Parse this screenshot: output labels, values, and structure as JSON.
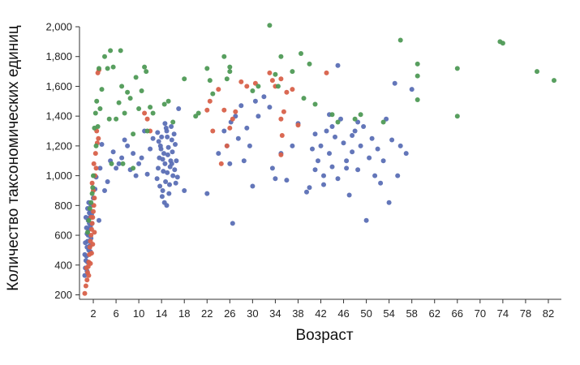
{
  "chart_data": {
    "type": "scatter",
    "xlabel": "Возраст",
    "ylabel": "Количество таксономических единиц",
    "xlim": [
      0,
      84
    ],
    "ylim": [
      170,
      2000
    ],
    "x_ticks": [
      2,
      6,
      10,
      14,
      18,
      22,
      26,
      30,
      34,
      38,
      42,
      46,
      50,
      54,
      58,
      62,
      66,
      70,
      74,
      78,
      82
    ],
    "x_tick_labels": [
      "2",
      "6",
      "10",
      "14",
      "18",
      "22",
      "26",
      "30",
      "34",
      "38",
      "42",
      "46",
      "50",
      "54",
      "58",
      "62",
      "66",
      "70",
      "74",
      "78",
      "82"
    ],
    "y_ticks": [
      200,
      400,
      600,
      800,
      1000,
      1200,
      1400,
      1600,
      1800,
      2000
    ],
    "y_tick_labels": [
      "200",
      "400",
      "600",
      "800",
      "1,000",
      "1,200",
      "1,400",
      "1,600",
      "1,800",
      "2,000"
    ],
    "grid": false,
    "colors": {
      "blue": "#5b6fb5",
      "red": "#d8614a",
      "green": "#4f9a56",
      "axis": "#333333"
    },
    "series": [
      {
        "color": "blue",
        "points": [
          [
            0.5,
            330
          ],
          [
            0.6,
            380
          ],
          [
            0.8,
            460
          ],
          [
            0.9,
            520
          ],
          [
            1.0,
            560
          ],
          [
            1.1,
            600
          ],
          [
            1.2,
            640
          ],
          [
            1.3,
            680
          ],
          [
            1.4,
            720
          ],
          [
            1.5,
            760
          ],
          [
            1.6,
            800
          ],
          [
            0.7,
            430
          ],
          [
            0.9,
            610
          ],
          [
            1.1,
            700
          ],
          [
            1.3,
            750
          ],
          [
            1.5,
            490
          ],
          [
            0.6,
            550
          ],
          [
            0.8,
            650
          ],
          [
            1.0,
            780
          ],
          [
            1.2,
            820
          ],
          [
            1.4,
            530
          ],
          [
            1.6,
            580
          ],
          [
            1.8,
            680
          ],
          [
            0.5,
            470
          ],
          [
            0.7,
            720
          ],
          [
            1.0,
            420
          ],
          [
            1.2,
            500
          ],
          [
            1.5,
            660
          ],
          [
            1.7,
            740
          ],
          [
            0.9,
            360
          ],
          [
            2.0,
            850
          ],
          [
            2.3,
            910
          ],
          [
            2.5,
            990
          ],
          [
            3.0,
            700
          ],
          [
            3.2,
            1050
          ],
          [
            3.5,
            1210
          ],
          [
            4.0,
            900
          ],
          [
            4.5,
            960
          ],
          [
            5.0,
            1100
          ],
          [
            5.5,
            1160
          ],
          [
            6.0,
            1050
          ],
          [
            6.5,
            1080
          ],
          [
            7.0,
            1120
          ],
          [
            7.5,
            1240
          ],
          [
            8.0,
            1200
          ],
          [
            8.5,
            1040
          ],
          [
            9.0,
            1150
          ],
          [
            9.5,
            1000
          ],
          [
            10.0,
            1080
          ],
          [
            10.5,
            1120
          ],
          [
            11.0,
            1300
          ],
          [
            11.5,
            1010
          ],
          [
            12.0,
            1180
          ],
          [
            12.5,
            1250
          ],
          [
            13.2,
            980
          ],
          [
            13.4,
            1050
          ],
          [
            13.6,
            1120
          ],
          [
            13.8,
            1200
          ],
          [
            14.0,
            1260
          ],
          [
            14.2,
            900
          ],
          [
            14.4,
            1150
          ],
          [
            14.6,
            1080
          ],
          [
            14.8,
            1320
          ],
          [
            15.0,
            1020
          ],
          [
            15.2,
            1190
          ],
          [
            15.4,
            940
          ],
          [
            15.6,
            1100
          ],
          [
            15.8,
            1240
          ],
          [
            16.0,
            1000
          ],
          [
            14.1,
            860
          ],
          [
            14.5,
            820
          ],
          [
            14.9,
            1300
          ],
          [
            15.3,
            880
          ],
          [
            13.5,
            1230
          ],
          [
            13.9,
            1180
          ],
          [
            14.3,
            1030
          ],
          [
            14.7,
            960
          ],
          [
            15.1,
            1140
          ],
          [
            15.5,
            1060
          ],
          [
            15.9,
            1160
          ],
          [
            16.2,
            1280
          ],
          [
            16.4,
            1210
          ],
          [
            16.6,
            1100
          ],
          [
            16.8,
            990
          ],
          [
            13.3,
            1290
          ],
          [
            14.6,
            1350
          ],
          [
            15.7,
            1330
          ],
          [
            16.3,
            1040
          ],
          [
            13.7,
            930
          ],
          [
            14.2,
            1110
          ],
          [
            15.0,
            1260
          ],
          [
            15.8,
            1080
          ],
          [
            16.5,
            950
          ],
          [
            14.9,
            800
          ],
          [
            17.0,
            1450
          ],
          [
            18.0,
            900
          ],
          [
            22.0,
            880
          ],
          [
            24.0,
            1150
          ],
          [
            25.0,
            1300
          ],
          [
            25.5,
            1200
          ],
          [
            26.0,
            1080
          ],
          [
            26.2,
            1360
          ],
          [
            26.5,
            680
          ],
          [
            27.0,
            1400
          ],
          [
            27.5,
            1250
          ],
          [
            28.0,
            1470
          ],
          [
            28.5,
            1100
          ],
          [
            29.0,
            1320
          ],
          [
            29.5,
            1200
          ],
          [
            30.0,
            930
          ],
          [
            30.5,
            1500
          ],
          [
            31.0,
            1400
          ],
          [
            32.0,
            1530
          ],
          [
            33.0,
            1460
          ],
          [
            33.5,
            1050
          ],
          [
            34.0,
            980
          ],
          [
            35.0,
            1150
          ],
          [
            36.0,
            970
          ],
          [
            37.0,
            1200
          ],
          [
            38.0,
            1350
          ],
          [
            39.5,
            890
          ],
          [
            40.0,
            920
          ],
          [
            40.5,
            1180
          ],
          [
            41.0,
            1040
          ],
          [
            41.5,
            1100
          ],
          [
            42.0,
            1200
          ],
          [
            42.5,
            1000
          ],
          [
            43.0,
            1300
          ],
          [
            43.5,
            1150
          ],
          [
            44.0,
            1060
          ],
          [
            44.5,
            1260
          ],
          [
            45.0,
            980
          ],
          [
            45.5,
            1380
          ],
          [
            46.0,
            1220
          ],
          [
            46.5,
            1100
          ],
          [
            47.0,
            870
          ],
          [
            47.5,
            1160
          ],
          [
            48.0,
            1300
          ],
          [
            48.5,
            1040
          ],
          [
            49.0,
            1200
          ],
          [
            49.5,
            1330
          ],
          [
            50.0,
            700
          ],
          [
            50.5,
            1120
          ],
          [
            51.0,
            1250
          ],
          [
            51.5,
            1000
          ],
          [
            52.0,
            1180
          ],
          [
            53.0,
            1100
          ],
          [
            53.5,
            1380
          ],
          [
            54.0,
            820
          ],
          [
            54.5,
            1240
          ],
          [
            55.0,
            1620
          ],
          [
            56.0,
            1200
          ],
          [
            57.0,
            1150
          ],
          [
            58.0,
            1580
          ],
          [
            45.0,
            1740
          ],
          [
            42.5,
            940
          ],
          [
            44.0,
            1330
          ],
          [
            46.5,
            1050
          ],
          [
            48.5,
            1360
          ],
          [
            52.5,
            950
          ],
          [
            55.5,
            1000
          ],
          [
            41.0,
            1280
          ],
          [
            43.5,
            1410
          ],
          [
            47.5,
            1270
          ]
        ]
      },
      {
        "color": "red",
        "points": [
          [
            0.5,
            210
          ],
          [
            0.7,
            260
          ],
          [
            0.9,
            300
          ],
          [
            1.0,
            350
          ],
          [
            1.1,
            390
          ],
          [
            1.2,
            420
          ],
          [
            1.3,
            470
          ],
          [
            1.4,
            520
          ],
          [
            1.5,
            560
          ],
          [
            1.6,
            600
          ],
          [
            1.7,
            640
          ],
          [
            1.8,
            680
          ],
          [
            1.9,
            720
          ],
          [
            2.0,
            760
          ],
          [
            2.1,
            800
          ],
          [
            2.2,
            850
          ],
          [
            2.0,
            900
          ],
          [
            1.8,
            950
          ],
          [
            2.3,
            1000
          ],
          [
            2.5,
            1050
          ],
          [
            1.5,
            410
          ],
          [
            1.7,
            480
          ],
          [
            1.2,
            330
          ],
          [
            0.8,
            380
          ],
          [
            2.2,
            620
          ],
          [
            2.4,
            1150
          ],
          [
            2.6,
            1300
          ],
          [
            2.8,
            1690
          ],
          [
            3.0,
            1710
          ],
          [
            2.9,
            1250
          ],
          [
            1.6,
            720
          ],
          [
            1.9,
            540
          ],
          [
            2.1,
            1080
          ],
          [
            2.7,
            1220
          ],
          [
            11.0,
            1420
          ],
          [
            11.5,
            1380
          ],
          [
            12.0,
            1300
          ],
          [
            22.0,
            1440
          ],
          [
            22.5,
            1500
          ],
          [
            23.0,
            1300
          ],
          [
            24.0,
            1580
          ],
          [
            25.0,
            1440
          ],
          [
            26.0,
            1320
          ],
          [
            26.5,
            1380
          ],
          [
            27.0,
            1430
          ],
          [
            28.0,
            1630
          ],
          [
            29.0,
            1600
          ],
          [
            30.5,
            1620
          ],
          [
            33.0,
            1690
          ],
          [
            33.5,
            1640
          ],
          [
            34.0,
            1600
          ],
          [
            35.0,
            1380
          ],
          [
            35.5,
            1430
          ],
          [
            35.0,
            1140
          ],
          [
            35.2,
            1270
          ],
          [
            35.0,
            1650
          ],
          [
            36.0,
            1560
          ],
          [
            37.0,
            1580
          ],
          [
            38.0,
            1340
          ],
          [
            43.0,
            1690
          ],
          [
            24.5,
            1080
          ],
          [
            25.5,
            1200
          ]
        ]
      },
      {
        "color": "green",
        "points": [
          [
            1.0,
            620
          ],
          [
            1.2,
            700
          ],
          [
            1.4,
            780
          ],
          [
            1.6,
            820
          ],
          [
            1.8,
            880
          ],
          [
            2.0,
            1000
          ],
          [
            2.2,
            1320
          ],
          [
            2.4,
            1420
          ],
          [
            2.6,
            1500
          ],
          [
            2.8,
            1330
          ],
          [
            3.0,
            1720
          ],
          [
            3.2,
            1450
          ],
          [
            3.5,
            1580
          ],
          [
            4.0,
            1800
          ],
          [
            4.5,
            1720
          ],
          [
            5.0,
            1840
          ],
          [
            5.5,
            1730
          ],
          [
            6.0,
            1380
          ],
          [
            6.5,
            1490
          ],
          [
            7.0,
            1600
          ],
          [
            7.5,
            1420
          ],
          [
            8.0,
            1560
          ],
          [
            8.5,
            1520
          ],
          [
            9.0,
            1280
          ],
          [
            9.5,
            1660
          ],
          [
            10.0,
            1450
          ],
          [
            10.5,
            1570
          ],
          [
            11.0,
            1730
          ],
          [
            11.5,
            1300
          ],
          [
            12.0,
            1460
          ],
          [
            12.5,
            1420
          ],
          [
            2.5,
            1200
          ],
          [
            1.9,
            920
          ],
          [
            4.8,
            1380
          ],
          [
            6.8,
            1840
          ],
          [
            9.0,
            1050
          ],
          [
            5.2,
            1080
          ],
          [
            7.2,
            1080
          ],
          [
            11.3,
            1700
          ],
          [
            14.5,
            1480
          ],
          [
            15.2,
            1500
          ],
          [
            16.0,
            1360
          ],
          [
            18.0,
            1650
          ],
          [
            20.0,
            1400
          ],
          [
            20.5,
            1420
          ],
          [
            22.0,
            1720
          ],
          [
            23.0,
            1550
          ],
          [
            25.0,
            1800
          ],
          [
            25.5,
            1650
          ],
          [
            26.0,
            1700
          ],
          [
            30.0,
            1570
          ],
          [
            31.0,
            1600
          ],
          [
            33.0,
            2010
          ],
          [
            34.0,
            1680
          ],
          [
            34.5,
            1600
          ],
          [
            35.0,
            1800
          ],
          [
            37.0,
            1700
          ],
          [
            38.5,
            1820
          ],
          [
            39.0,
            1520
          ],
          [
            40.0,
            1750
          ],
          [
            41.0,
            1480
          ],
          [
            45.0,
            1360
          ],
          [
            48.0,
            1380
          ],
          [
            49.0,
            1410
          ],
          [
            53.0,
            1360
          ],
          [
            56.0,
            1910
          ],
          [
            59.0,
            1750
          ],
          [
            59.0,
            1670
          ],
          [
            59.0,
            1510
          ],
          [
            66.0,
            1720
          ],
          [
            66.0,
            1400
          ],
          [
            73.5,
            1900
          ],
          [
            74.0,
            1890
          ],
          [
            80.0,
            1700
          ],
          [
            83.0,
            1640
          ],
          [
            22.5,
            1640
          ],
          [
            26.0,
            1730
          ],
          [
            44.0,
            1410
          ]
        ]
      }
    ]
  }
}
